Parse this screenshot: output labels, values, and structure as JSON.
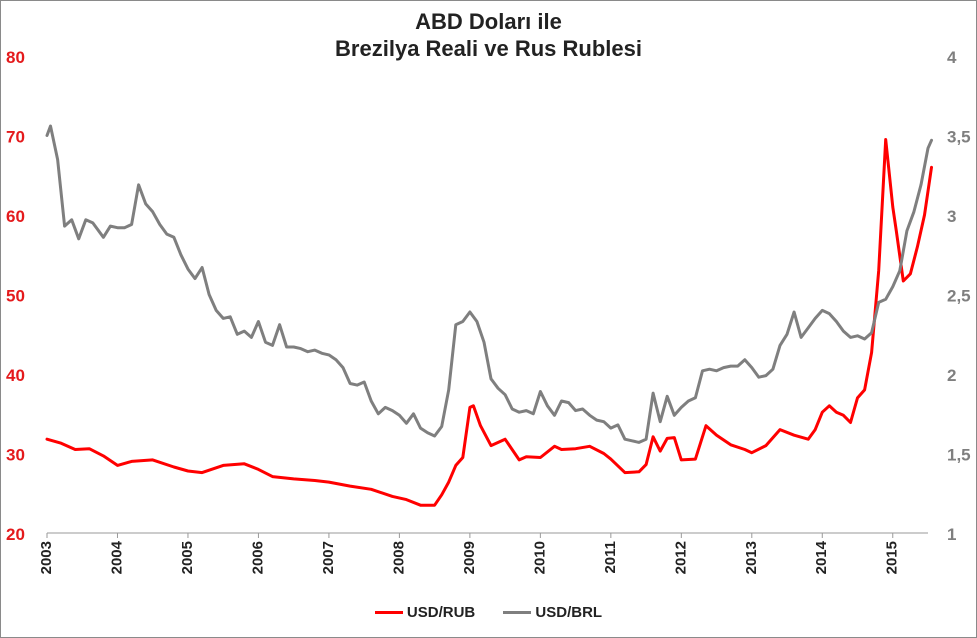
{
  "chart_data": {
    "type": "line",
    "title_line1": "ABD Doları ile",
    "title_line2": "Brezilya Reali ve Rus Rublesi",
    "x_range": [
      2003.0,
      2015.5
    ],
    "x_ticks": [
      "2003",
      "2004",
      "2005",
      "2006",
      "2007",
      "2008",
      "2009",
      "2010",
      "2011",
      "2012",
      "2013",
      "2014",
      "2015"
    ],
    "y_left": {
      "range": [
        20,
        80
      ],
      "ticks": [
        "20",
        "30",
        "40",
        "50",
        "60",
        "70",
        "80"
      ],
      "color": "#e41a1c"
    },
    "y_right": {
      "range": [
        1,
        4
      ],
      "ticks": [
        "1",
        "1,5",
        "2",
        "2,5",
        "3",
        "3,5",
        "4"
      ],
      "color": "#7f7f7f"
    },
    "grid": false,
    "legend_position": "bottom",
    "series": [
      {
        "name": "USD/RUB",
        "axis": "left",
        "color": "#ff0000",
        "x": [
          2003.0,
          2003.2,
          2003.4,
          2003.6,
          2003.8,
          2004.0,
          2004.2,
          2004.5,
          2004.8,
          2005.0,
          2005.2,
          2005.5,
          2005.8,
          2006.0,
          2006.2,
          2006.5,
          2006.8,
          2007.0,
          2007.3,
          2007.6,
          2007.9,
          2008.1,
          2008.3,
          2008.5,
          2008.6,
          2008.7,
          2008.8,
          2008.9,
          2009.0,
          2009.05,
          2009.15,
          2009.3,
          2009.5,
          2009.7,
          2009.8,
          2010.0,
          2010.2,
          2010.3,
          2010.5,
          2010.7,
          2010.9,
          2011.0,
          2011.2,
          2011.4,
          2011.5,
          2011.6,
          2011.7,
          2011.8,
          2011.9,
          2012.0,
          2012.2,
          2012.35,
          2012.5,
          2012.7,
          2012.9,
          2013.0,
          2013.2,
          2013.4,
          2013.6,
          2013.8,
          2013.9,
          2014.0,
          2014.1,
          2014.2,
          2014.3,
          2014.4,
          2014.5,
          2014.6,
          2014.7,
          2014.8,
          2014.9,
          2015.0,
          2015.05,
          2015.15,
          2015.25,
          2015.35,
          2015.45,
          2015.55
        ],
        "values": [
          31.8,
          31.3,
          30.5,
          30.6,
          29.7,
          28.5,
          29.0,
          29.2,
          28.3,
          27.8,
          27.6,
          28.5,
          28.7,
          28.0,
          27.1,
          26.8,
          26.6,
          26.4,
          25.9,
          25.5,
          24.6,
          24.2,
          23.5,
          23.5,
          24.8,
          26.4,
          28.5,
          29.5,
          35.8,
          36.0,
          33.5,
          31.0,
          31.8,
          29.2,
          29.6,
          29.5,
          30.9,
          30.5,
          30.6,
          30.9,
          30.0,
          29.3,
          27.6,
          27.7,
          28.6,
          32.1,
          30.3,
          31.9,
          32.0,
          29.2,
          29.3,
          33.5,
          32.3,
          31.1,
          30.5,
          30.1,
          31.0,
          33.0,
          32.3,
          31.8,
          33.0,
          35.2,
          36.0,
          35.2,
          34.8,
          33.9,
          37.0,
          38.0,
          42.7,
          53.0,
          69.5,
          61.0,
          58.0,
          51.7,
          52.6,
          56.0,
          60.0,
          66.0
        ]
      },
      {
        "name": "USD/BRL",
        "axis": "right",
        "color": "#7f7f7f",
        "x": [
          2003.0,
          2003.05,
          2003.15,
          2003.25,
          2003.35,
          2003.45,
          2003.55,
          2003.65,
          2003.8,
          2003.9,
          2004.0,
          2004.1,
          2004.2,
          2004.3,
          2004.4,
          2004.5,
          2004.6,
          2004.7,
          2004.8,
          2004.9,
          2005.0,
          2005.1,
          2005.2,
          2005.3,
          2005.4,
          2005.5,
          2005.6,
          2005.7,
          2005.8,
          2005.9,
          2006.0,
          2006.1,
          2006.2,
          2006.3,
          2006.4,
          2006.5,
          2006.6,
          2006.7,
          2006.8,
          2006.9,
          2007.0,
          2007.1,
          2007.2,
          2007.3,
          2007.4,
          2007.5,
          2007.6,
          2007.7,
          2007.8,
          2007.9,
          2008.0,
          2008.1,
          2008.2,
          2008.3,
          2008.4,
          2008.5,
          2008.6,
          2008.7,
          2008.8,
          2008.9,
          2009.0,
          2009.1,
          2009.2,
          2009.3,
          2009.4,
          2009.5,
          2009.6,
          2009.7,
          2009.8,
          2009.9,
          2010.0,
          2010.1,
          2010.2,
          2010.3,
          2010.4,
          2010.5,
          2010.6,
          2010.7,
          2010.8,
          2010.9,
          2011.0,
          2011.1,
          2011.2,
          2011.3,
          2011.4,
          2011.5,
          2011.6,
          2011.7,
          2011.8,
          2011.9,
          2012.0,
          2012.1,
          2012.2,
          2012.3,
          2012.4,
          2012.5,
          2012.6,
          2012.7,
          2012.8,
          2012.9,
          2013.0,
          2013.1,
          2013.2,
          2013.3,
          2013.4,
          2013.5,
          2013.6,
          2013.7,
          2013.8,
          2013.9,
          2014.0,
          2014.1,
          2014.2,
          2014.3,
          2014.4,
          2014.5,
          2014.6,
          2014.7,
          2014.8,
          2014.9,
          2015.0,
          2015.1,
          2015.2,
          2015.3,
          2015.4,
          2015.5,
          2015.55
        ],
        "values": [
          3.5,
          3.56,
          3.35,
          2.93,
          2.97,
          2.85,
          2.97,
          2.95,
          2.86,
          2.93,
          2.92,
          2.92,
          2.94,
          3.19,
          3.07,
          3.02,
          2.94,
          2.88,
          2.86,
          2.75,
          2.66,
          2.6,
          2.67,
          2.5,
          2.4,
          2.35,
          2.36,
          2.25,
          2.27,
          2.23,
          2.33,
          2.2,
          2.18,
          2.31,
          2.17,
          2.17,
          2.16,
          2.14,
          2.15,
          2.13,
          2.12,
          2.09,
          2.04,
          1.94,
          1.93,
          1.95,
          1.83,
          1.75,
          1.79,
          1.77,
          1.74,
          1.69,
          1.75,
          1.66,
          1.63,
          1.61,
          1.67,
          1.9,
          2.31,
          2.33,
          2.39,
          2.33,
          2.2,
          1.97,
          1.91,
          1.87,
          1.78,
          1.76,
          1.77,
          1.75,
          1.89,
          1.8,
          1.74,
          1.83,
          1.82,
          1.77,
          1.78,
          1.74,
          1.71,
          1.7,
          1.66,
          1.68,
          1.59,
          1.58,
          1.57,
          1.59,
          1.88,
          1.7,
          1.86,
          1.74,
          1.79,
          1.83,
          1.85,
          2.02,
          2.03,
          2.02,
          2.04,
          2.05,
          2.05,
          2.09,
          2.04,
          1.98,
          1.99,
          2.03,
          2.18,
          2.25,
          2.39,
          2.23,
          2.29,
          2.35,
          2.4,
          2.38,
          2.33,
          2.27,
          2.23,
          2.24,
          2.22,
          2.26,
          2.45,
          2.47,
          2.55,
          2.65,
          2.9,
          3.02,
          3.19,
          3.42,
          3.47
        ]
      }
    ]
  }
}
